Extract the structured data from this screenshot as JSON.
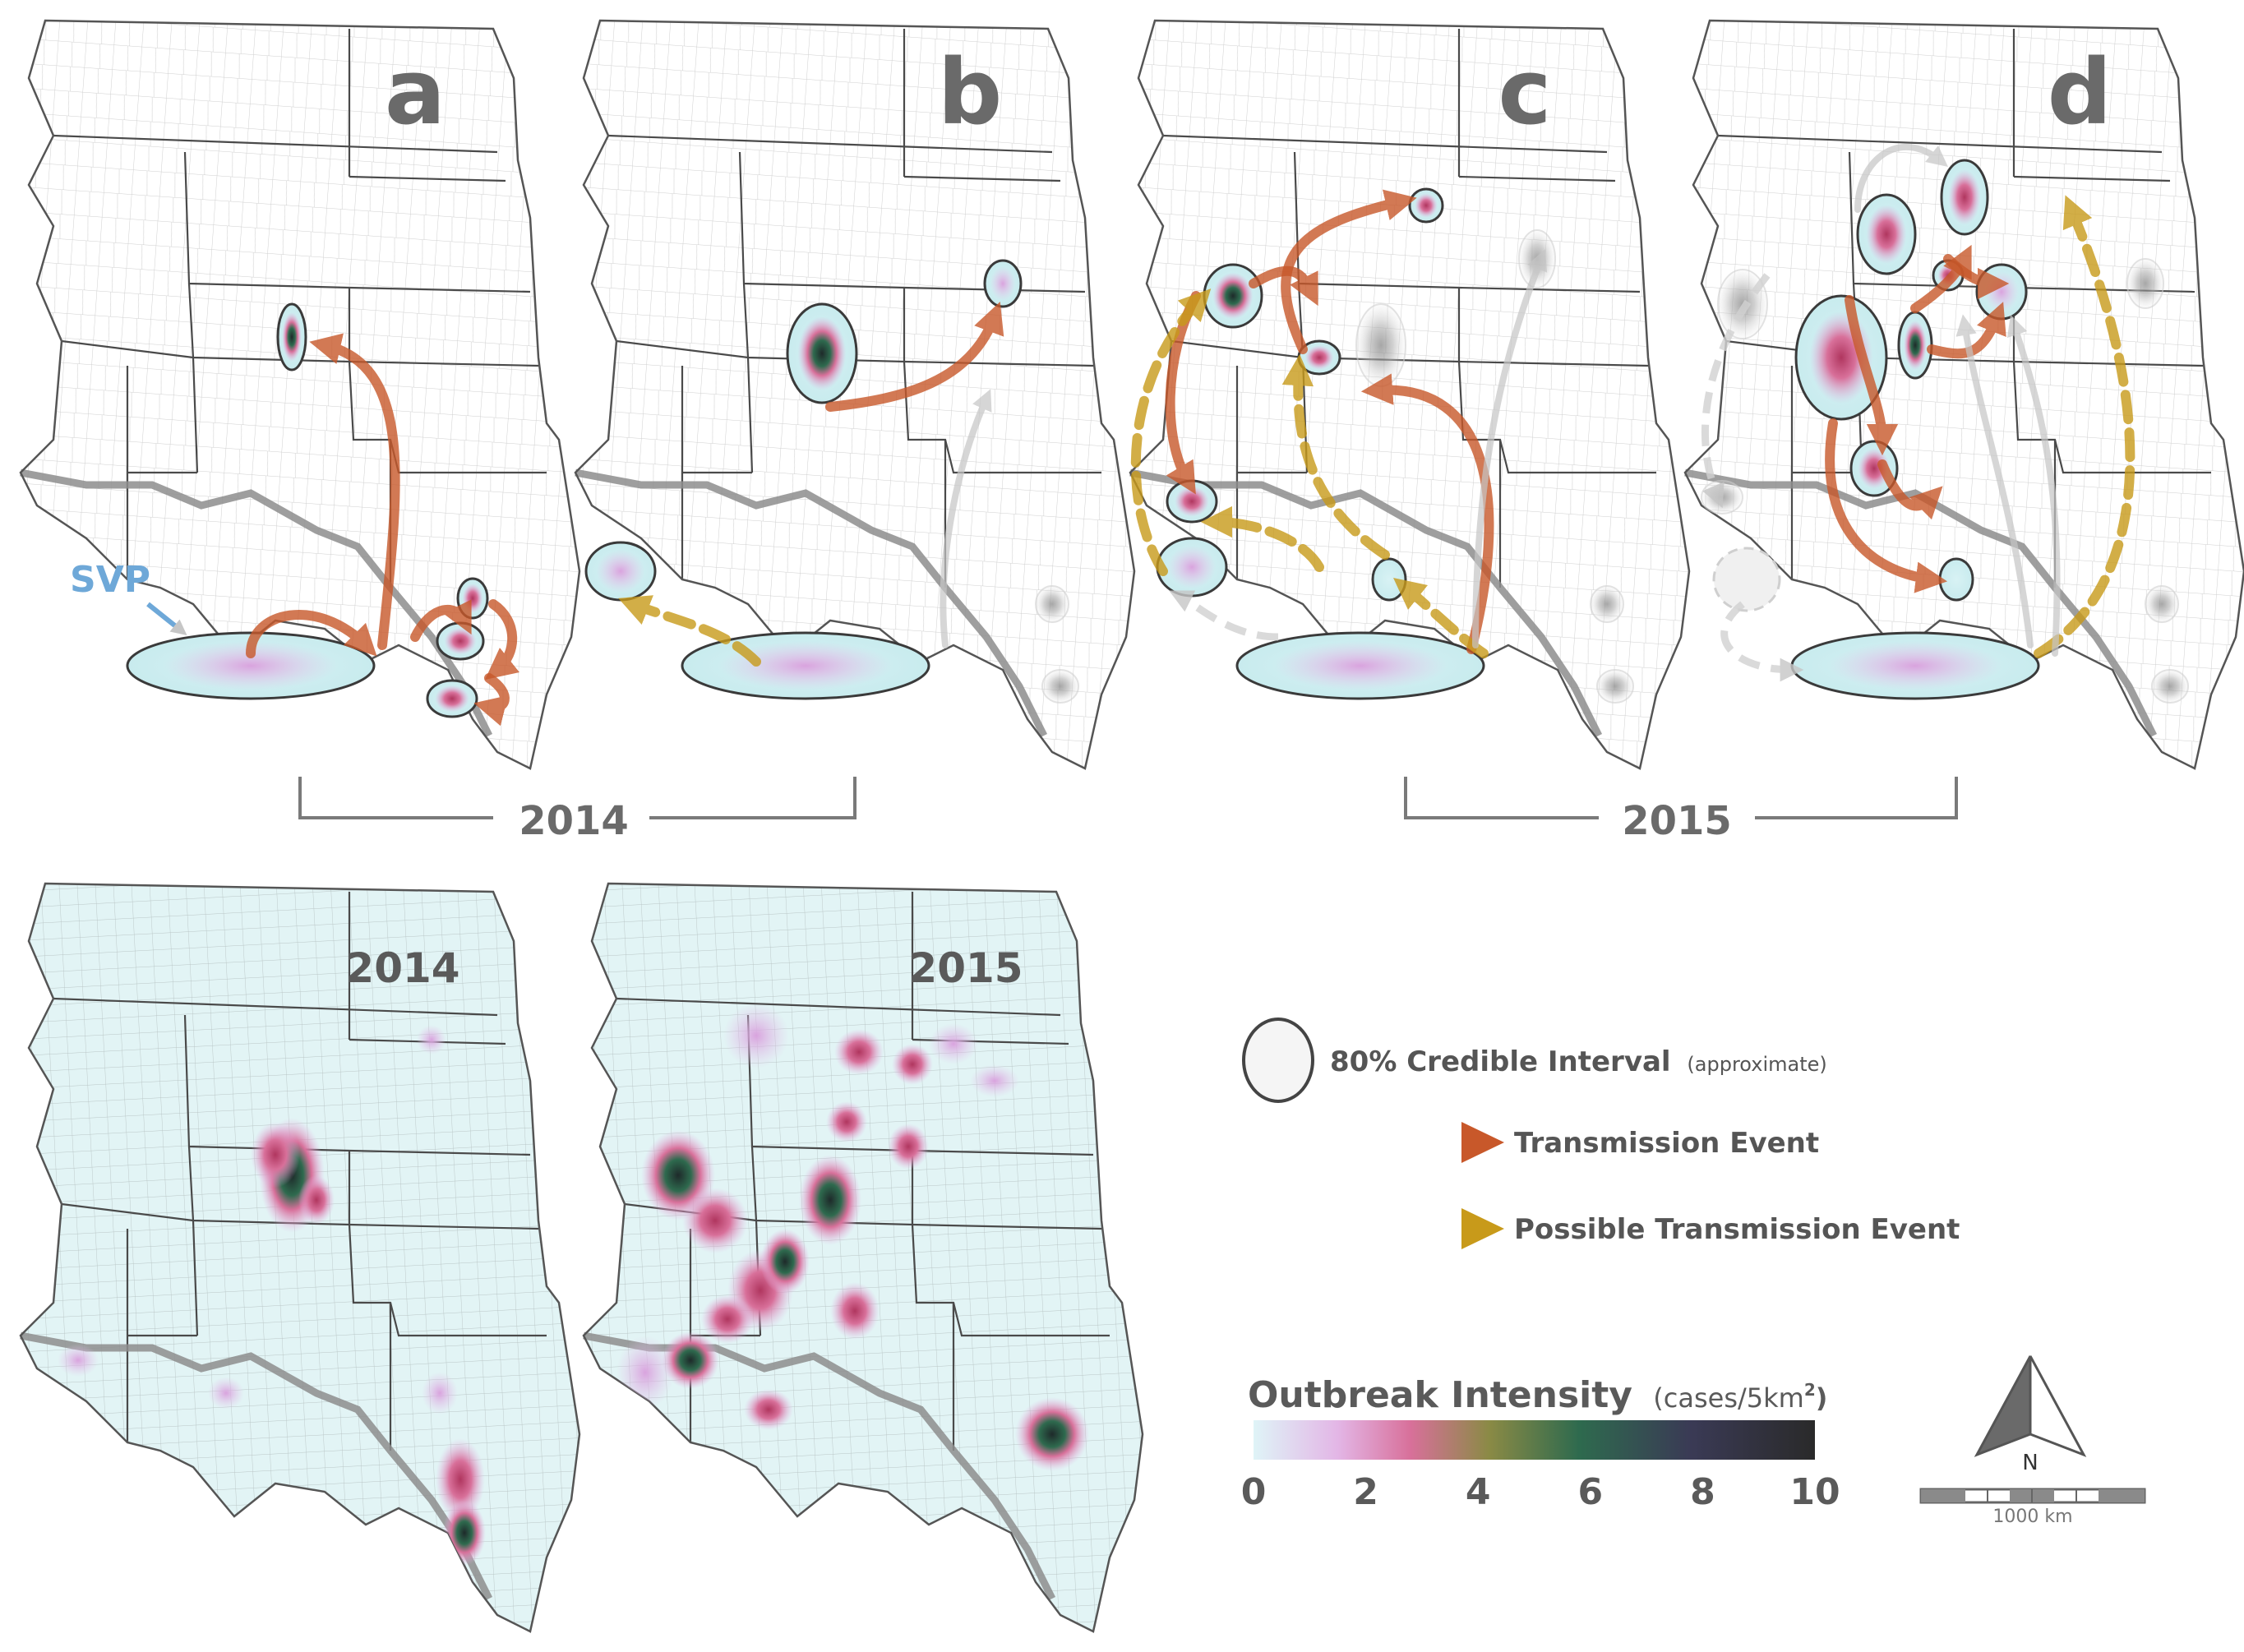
{
  "panels": [
    {
      "letter": "a"
    },
    {
      "letter": "b"
    },
    {
      "letter": "c"
    },
    {
      "letter": "d"
    }
  ],
  "year_brackets": [
    "2014",
    "2015"
  ],
  "svp_label": "SVP",
  "intensity_maps": [
    {
      "year": "2014"
    },
    {
      "year": "2015"
    }
  ],
  "legend": {
    "ci_label": "80% Credible Interval",
    "ci_note": "(approximate)",
    "transmission_label": "Transmission Event",
    "possible_label": "Possible Transmission Event"
  },
  "colorbar": {
    "title": "Outbreak Intensity",
    "units_prefix": "(cases/5km",
    "units_sup": "2",
    "units_suffix": ")",
    "ticks": [
      "0",
      "2",
      "4",
      "6",
      "8",
      "10"
    ],
    "stops": [
      "#dff4f7",
      "#e3b6e6",
      "#d8709a",
      "#8a8a45",
      "#2e6a4e",
      "#3a3a55",
      "#2a2a2a"
    ]
  },
  "north_arrow": {
    "label": "N"
  },
  "scale_bar": {
    "label": "1000 km"
  },
  "colors": {
    "transmission": "#c8582a",
    "possible": "#c89a1a",
    "grey": "#bcbcbc",
    "label_grey": "#6a6a6a",
    "svp_blue": "#6ea8d8"
  }
}
